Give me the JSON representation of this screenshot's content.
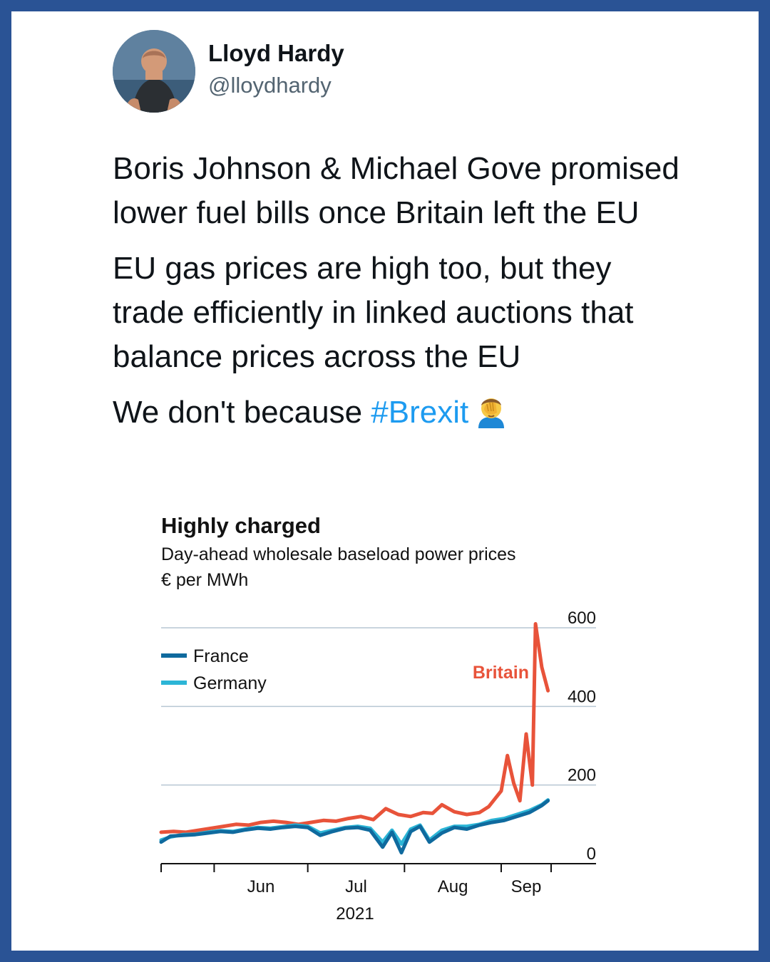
{
  "tweet": {
    "author_name": "Lloyd Hardy",
    "author_handle": "@lloydhardy",
    "paragraph_1": "Boris Johnson & Michael Gove promised lower fuel bills once Britain left the EU",
    "paragraph_2": "EU gas prices are high too, but they trade efficiently in linked auctions that balance prices across the EU",
    "paragraph_3_prefix": "We don't because",
    "hashtag": "#Brexit",
    "emoji_name": "face-palm-emoji",
    "hashtag_color": "#1d9bf0",
    "border_color": "#2a5395"
  },
  "chart_data": {
    "type": "line",
    "title": "Highly charged",
    "subtitle": "Day-ahead wholesale baseload power prices",
    "unit": "€ per MWh",
    "ylim": [
      0,
      600
    ],
    "yticks": [
      0,
      200,
      400,
      600
    ],
    "xticks": [
      "Jun",
      "Jul",
      "Aug",
      "Sep"
    ],
    "year_label": "2021",
    "legend": [
      {
        "name": "France",
        "color": "#0f6a9e"
      },
      {
        "name": "Germany",
        "color": "#2cb5d6"
      }
    ],
    "series_label": {
      "name": "Britain",
      "color": "#e8533a"
    },
    "x_start": "2021-05-15",
    "x_end": "2021-09-17",
    "series": [
      {
        "name": "France",
        "color": "#0f6a9e",
        "x": [
          "2021-05-15",
          "2021-05-18",
          "2021-05-22",
          "2021-05-26",
          "2021-05-30",
          "2021-06-03",
          "2021-06-07",
          "2021-06-11",
          "2021-06-15",
          "2021-06-19",
          "2021-06-23",
          "2021-06-27",
          "2021-07-01",
          "2021-07-05",
          "2021-07-09",
          "2021-07-13",
          "2021-07-17",
          "2021-07-21",
          "2021-07-25",
          "2021-07-28",
          "2021-07-31",
          "2021-08-03",
          "2021-08-06",
          "2021-08-09",
          "2021-08-13",
          "2021-08-17",
          "2021-08-21",
          "2021-08-25",
          "2021-08-29",
          "2021-09-02",
          "2021-09-06",
          "2021-09-10",
          "2021-09-14",
          "2021-09-16"
        ],
        "values": [
          55,
          70,
          72,
          74,
          78,
          82,
          80,
          86,
          90,
          88,
          92,
          95,
          92,
          72,
          82,
          90,
          92,
          85,
          42,
          80,
          28,
          82,
          95,
          55,
          78,
          92,
          88,
          98,
          105,
          110,
          120,
          130,
          148,
          160
        ]
      },
      {
        "name": "Germany",
        "color": "#2cb5d6",
        "x": [
          "2021-05-15",
          "2021-05-18",
          "2021-05-22",
          "2021-05-26",
          "2021-05-30",
          "2021-06-03",
          "2021-06-07",
          "2021-06-11",
          "2021-06-15",
          "2021-06-19",
          "2021-06-23",
          "2021-06-27",
          "2021-07-01",
          "2021-07-05",
          "2021-07-09",
          "2021-07-13",
          "2021-07-17",
          "2021-07-21",
          "2021-07-25",
          "2021-07-28",
          "2021-07-31",
          "2021-08-03",
          "2021-08-06",
          "2021-08-09",
          "2021-08-13",
          "2021-08-17",
          "2021-08-21",
          "2021-08-25",
          "2021-08-29",
          "2021-09-02",
          "2021-09-06",
          "2021-09-10",
          "2021-09-14",
          "2021-09-16"
        ],
        "values": [
          60,
          68,
          74,
          75,
          80,
          84,
          82,
          88,
          92,
          90,
          94,
          98,
          95,
          78,
          85,
          92,
          95,
          90,
          55,
          85,
          50,
          88,
          98,
          60,
          85,
          95,
          95,
          100,
          110,
          115,
          125,
          135,
          150,
          162
        ]
      },
      {
        "name": "Britain",
        "color": "#e8533a",
        "x": [
          "2021-05-15",
          "2021-05-19",
          "2021-05-23",
          "2021-05-27",
          "2021-05-31",
          "2021-06-04",
          "2021-06-08",
          "2021-06-12",
          "2021-06-16",
          "2021-06-20",
          "2021-06-24",
          "2021-06-28",
          "2021-07-02",
          "2021-07-06",
          "2021-07-10",
          "2021-07-14",
          "2021-07-18",
          "2021-07-22",
          "2021-07-26",
          "2021-07-30",
          "2021-08-03",
          "2021-08-07",
          "2021-08-10",
          "2021-08-13",
          "2021-08-17",
          "2021-08-21",
          "2021-08-25",
          "2021-08-28",
          "2021-08-30",
          "2021-09-01",
          "2021-09-03",
          "2021-09-05",
          "2021-09-07",
          "2021-09-09",
          "2021-09-11",
          "2021-09-12",
          "2021-09-14",
          "2021-09-16"
        ],
        "values": [
          80,
          82,
          80,
          85,
          90,
          95,
          100,
          98,
          105,
          108,
          105,
          100,
          105,
          110,
          108,
          115,
          120,
          112,
          140,
          125,
          120,
          130,
          128,
          150,
          132,
          125,
          130,
          145,
          165,
          185,
          275,
          205,
          160,
          330,
          200,
          610,
          500,
          440
        ]
      }
    ]
  }
}
